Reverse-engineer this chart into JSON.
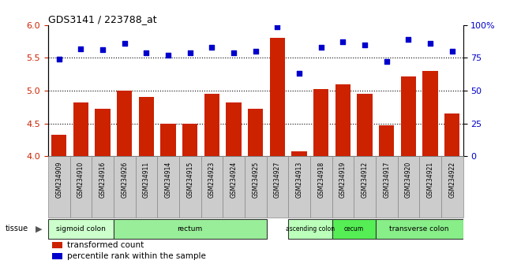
{
  "title": "GDS3141 / 223788_at",
  "samples": [
    "GSM234909",
    "GSM234910",
    "GSM234916",
    "GSM234926",
    "GSM234911",
    "GSM234914",
    "GSM234915",
    "GSM234923",
    "GSM234924",
    "GSM234925",
    "GSM234927",
    "GSM234913",
    "GSM234918",
    "GSM234919",
    "GSM234912",
    "GSM234917",
    "GSM234920",
    "GSM234921",
    "GSM234922"
  ],
  "bar_values": [
    4.33,
    4.82,
    4.72,
    5.0,
    4.9,
    4.5,
    4.5,
    4.95,
    4.82,
    4.72,
    5.8,
    4.07,
    5.02,
    5.1,
    4.95,
    4.47,
    5.22,
    5.3,
    4.65
  ],
  "dot_values": [
    74,
    82,
    81,
    86,
    79,
    77,
    79,
    83,
    79,
    80,
    99,
    63,
    83,
    87,
    85,
    72,
    89,
    86,
    80
  ],
  "bar_color": "#cc2200",
  "dot_color": "#0000cc",
  "ylim_left": [
    4.0,
    6.0
  ],
  "ylim_right": [
    0,
    100
  ],
  "yticks_left": [
    4.0,
    4.5,
    5.0,
    5.5,
    6.0
  ],
  "yticks_right": [
    0,
    25,
    50,
    75,
    100
  ],
  "ytick_labels_right": [
    "0",
    "25",
    "50",
    "75",
    "100%"
  ],
  "hlines": [
    4.5,
    5.0,
    5.5
  ],
  "tissue_groups": [
    {
      "label": "sigmoid colon",
      "start": 0,
      "end": 3,
      "color": "#ccffcc"
    },
    {
      "label": "rectum",
      "start": 3,
      "end": 10,
      "color": "#99ee99"
    },
    {
      "label": "ascending colon",
      "start": 11,
      "end": 13,
      "color": "#bbffbb"
    },
    {
      "label": "cecum",
      "start": 13,
      "end": 15,
      "color": "#55ee55"
    },
    {
      "label": "transverse colon",
      "start": 15,
      "end": 19,
      "color": "#88ee88"
    }
  ],
  "tissue_label": "tissue",
  "legend_bar": "transformed count",
  "legend_dot": "percentile rank within the sample"
}
